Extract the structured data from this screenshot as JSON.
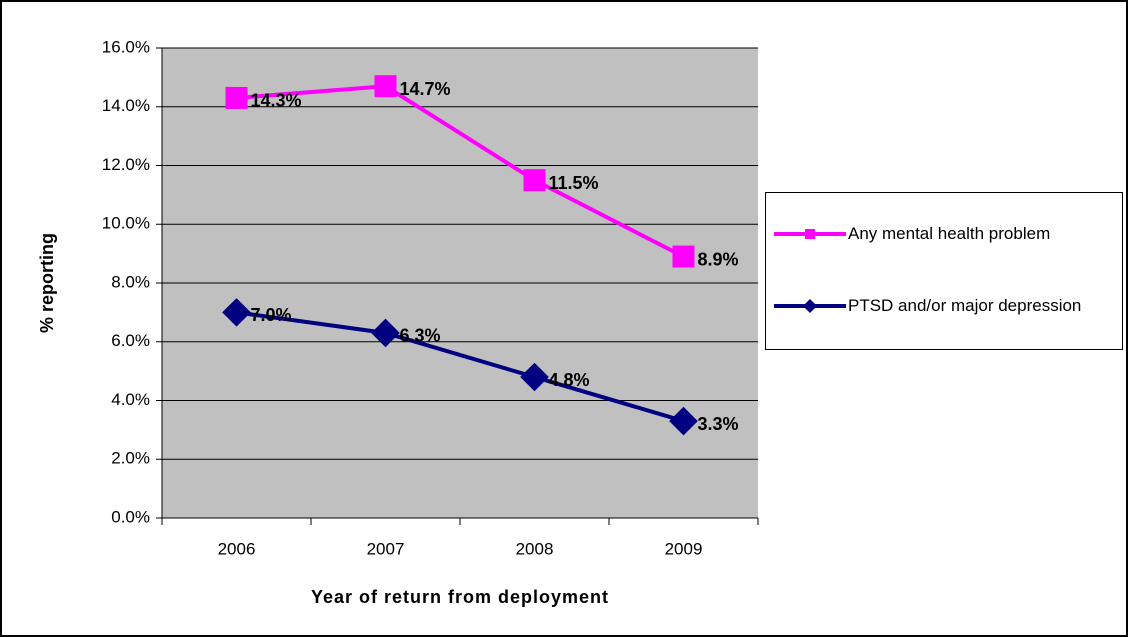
{
  "chart_data": {
    "type": "line",
    "x_label": "Year of return from deployment",
    "y_label": "% reporting",
    "categories": [
      "2006",
      "2007",
      "2008",
      "2009"
    ],
    "series": [
      {
        "name": "Any mental health problem",
        "color": "#ff00ff",
        "marker": "square",
        "values": [
          14.3,
          14.7,
          11.5,
          8.9
        ],
        "value_labels": [
          "14.3%",
          "14.7%",
          "11.5%",
          "8.9%"
        ]
      },
      {
        "name": "PTSD and/or major depression",
        "color": "#000080",
        "marker": "diamond",
        "values": [
          7.0,
          6.3,
          4.8,
          3.3
        ],
        "value_labels": [
          "7.0%",
          "6.3%",
          "4.8%",
          "3.3%"
        ]
      }
    ],
    "ylim": [
      0,
      16
    ],
    "yticks": [
      {
        "value": 0,
        "label": "0.0%"
      },
      {
        "value": 2,
        "label": "2.0%"
      },
      {
        "value": 4,
        "label": "4.0%"
      },
      {
        "value": 6,
        "label": "6.0%"
      },
      {
        "value": 8,
        "label": "8.0%"
      },
      {
        "value": 10,
        "label": "10.0%"
      },
      {
        "value": 12,
        "label": "12.0%"
      },
      {
        "value": 14,
        "label": "14.0%"
      },
      {
        "value": 16,
        "label": "16.0%"
      }
    ],
    "grid": true,
    "plot_background": "#c0c0c0",
    "legend": "right"
  }
}
